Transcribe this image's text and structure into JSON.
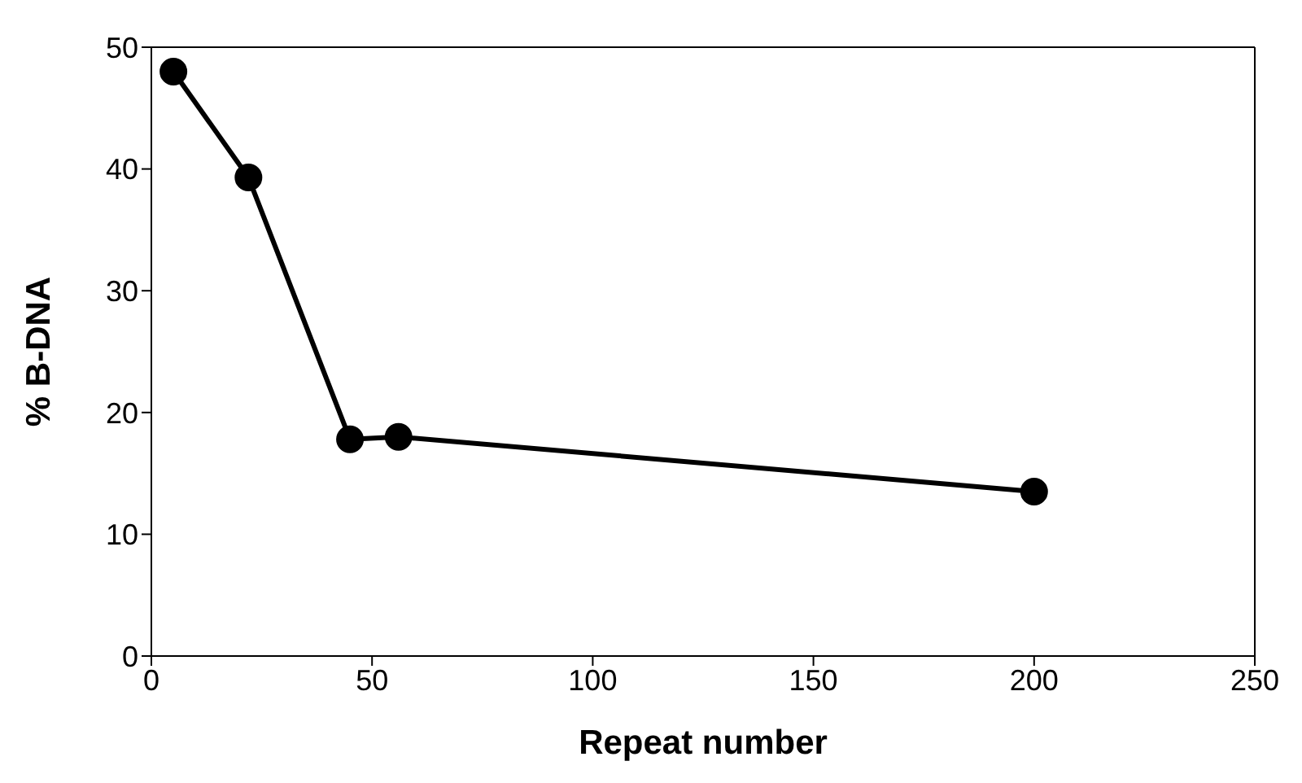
{
  "chart_data": {
    "type": "line",
    "xlabel": "Repeat number",
    "ylabel": "% B-DNA",
    "x": [
      5,
      22,
      45,
      56,
      200
    ],
    "series": [
      {
        "color": "#000000",
        "values": [
          48,
          39.3,
          17.8,
          18,
          13.5
        ]
      }
    ],
    "xlim": [
      0,
      250
    ],
    "xticks": [
      0,
      50,
      100,
      150,
      200,
      250
    ],
    "ylim": [
      0,
      50
    ],
    "yticks": [
      0,
      10,
      20,
      30,
      40,
      50
    ],
    "grid": false,
    "legend": false,
    "marker": "circle",
    "line_style": "solid"
  }
}
